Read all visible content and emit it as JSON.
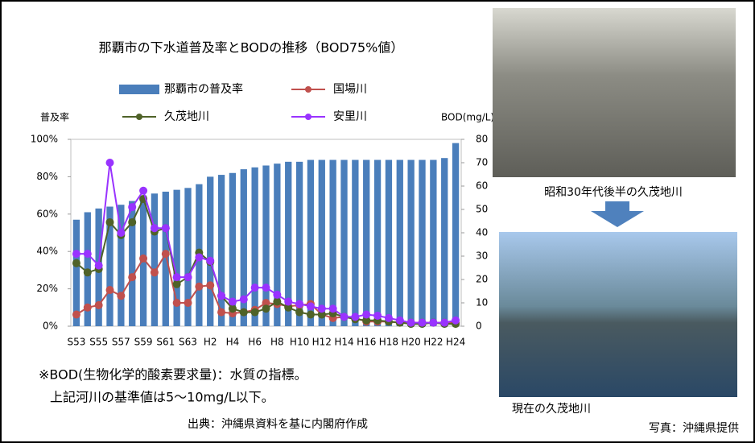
{
  "chart_data": {
    "type": "bar",
    "title": "那覇市の下水道普及率とBODの推移（BOD75%値）",
    "y_label": "普及率",
    "y2_label": "BOD(mg/L)",
    "categories": [
      "S53",
      null,
      "S55",
      null,
      "S57",
      null,
      "S59",
      null,
      "S61",
      null,
      "S63",
      null,
      "H2",
      null,
      "H4",
      null,
      "H6",
      null,
      "H8",
      null,
      "H10",
      null,
      "H12",
      null,
      "H14",
      null,
      "H16",
      null,
      "H18",
      null,
      "H20",
      null,
      "H22",
      null,
      "H24"
    ],
    "series": [
      {
        "name": "那覇市の普及率",
        "type": "bar",
        "color": "#4a7ebb",
        "values": [
          57,
          61,
          63,
          64,
          65,
          67,
          70,
          71,
          72,
          73,
          74,
          76,
          80,
          81,
          82,
          84,
          85,
          86,
          87,
          88,
          88,
          89,
          89,
          89,
          89,
          89,
          89,
          89,
          89,
          89,
          89,
          89,
          89,
          90,
          98
        ]
      },
      {
        "name": "国場川",
        "type": "line",
        "axis": "y2",
        "color": "#c0504d",
        "values": [
          5,
          8,
          9,
          15.5,
          13,
          21,
          29,
          23,
          31,
          10,
          10,
          17,
          17.5,
          6,
          5.5,
          6,
          7,
          10,
          9.5,
          8.5,
          9,
          9.5,
          5,
          3.5,
          4,
          3.5,
          2,
          2,
          2,
          1.5,
          1.5,
          1.5,
          1.5,
          1.5,
          1.5
        ]
      },
      {
        "name": "久茂地川",
        "type": "line",
        "axis": "y2",
        "color": "#4f6228",
        "values": [
          27,
          23,
          24.5,
          44.5,
          39,
          44.5,
          54.5,
          40.5,
          42,
          18,
          21,
          31.5,
          27.5,
          13,
          7.5,
          6,
          6,
          7.5,
          10.5,
          8,
          6,
          5,
          5,
          5.5,
          4,
          3,
          2.5,
          2.5,
          2,
          1.5,
          1,
          1,
          1.5,
          1,
          1
        ]
      },
      {
        "name": "安里川",
        "type": "line",
        "axis": "y2",
        "color": "#9933ff",
        "values": [
          31,
          31,
          26,
          70,
          40,
          51,
          58,
          42,
          42,
          21,
          21,
          29.5,
          28,
          13,
          10.5,
          11.5,
          16.5,
          16.5,
          13.5,
          10.5,
          9.5,
          8.5,
          7.5,
          7.5,
          4,
          4,
          5,
          4.5,
          3.5,
          2.5,
          1.5,
          1.5,
          1.5,
          1.5,
          2.5
        ]
      }
    ],
    "ylim": [
      0,
      100
    ],
    "yticks": [
      {
        "value": 0,
        "label": "0%"
      },
      {
        "value": 20,
        "label": "20%"
      },
      {
        "value": 40,
        "label": "40%"
      },
      {
        "value": 60,
        "label": "60%"
      },
      {
        "value": 80,
        "label": "80%"
      },
      {
        "value": 100,
        "label": "100%"
      }
    ],
    "y2lim": [
      0,
      80
    ],
    "y2ticks": [
      0,
      10,
      20,
      30,
      40,
      50,
      60,
      70,
      80
    ],
    "grid": false
  },
  "notes": [
    "※BOD(生物化学的酸素要求量)：水質の指標。",
    "上記河川の基準値は5～10mg/L以下。"
  ],
  "source": "出典：沖縄県資料を基に内閣府作成",
  "photos": [
    {
      "caption": "昭和30年代後半の久茂地川"
    },
    {
      "caption": "現在の久茂地川"
    }
  ],
  "photo_credit": "写真：沖縄県提供"
}
